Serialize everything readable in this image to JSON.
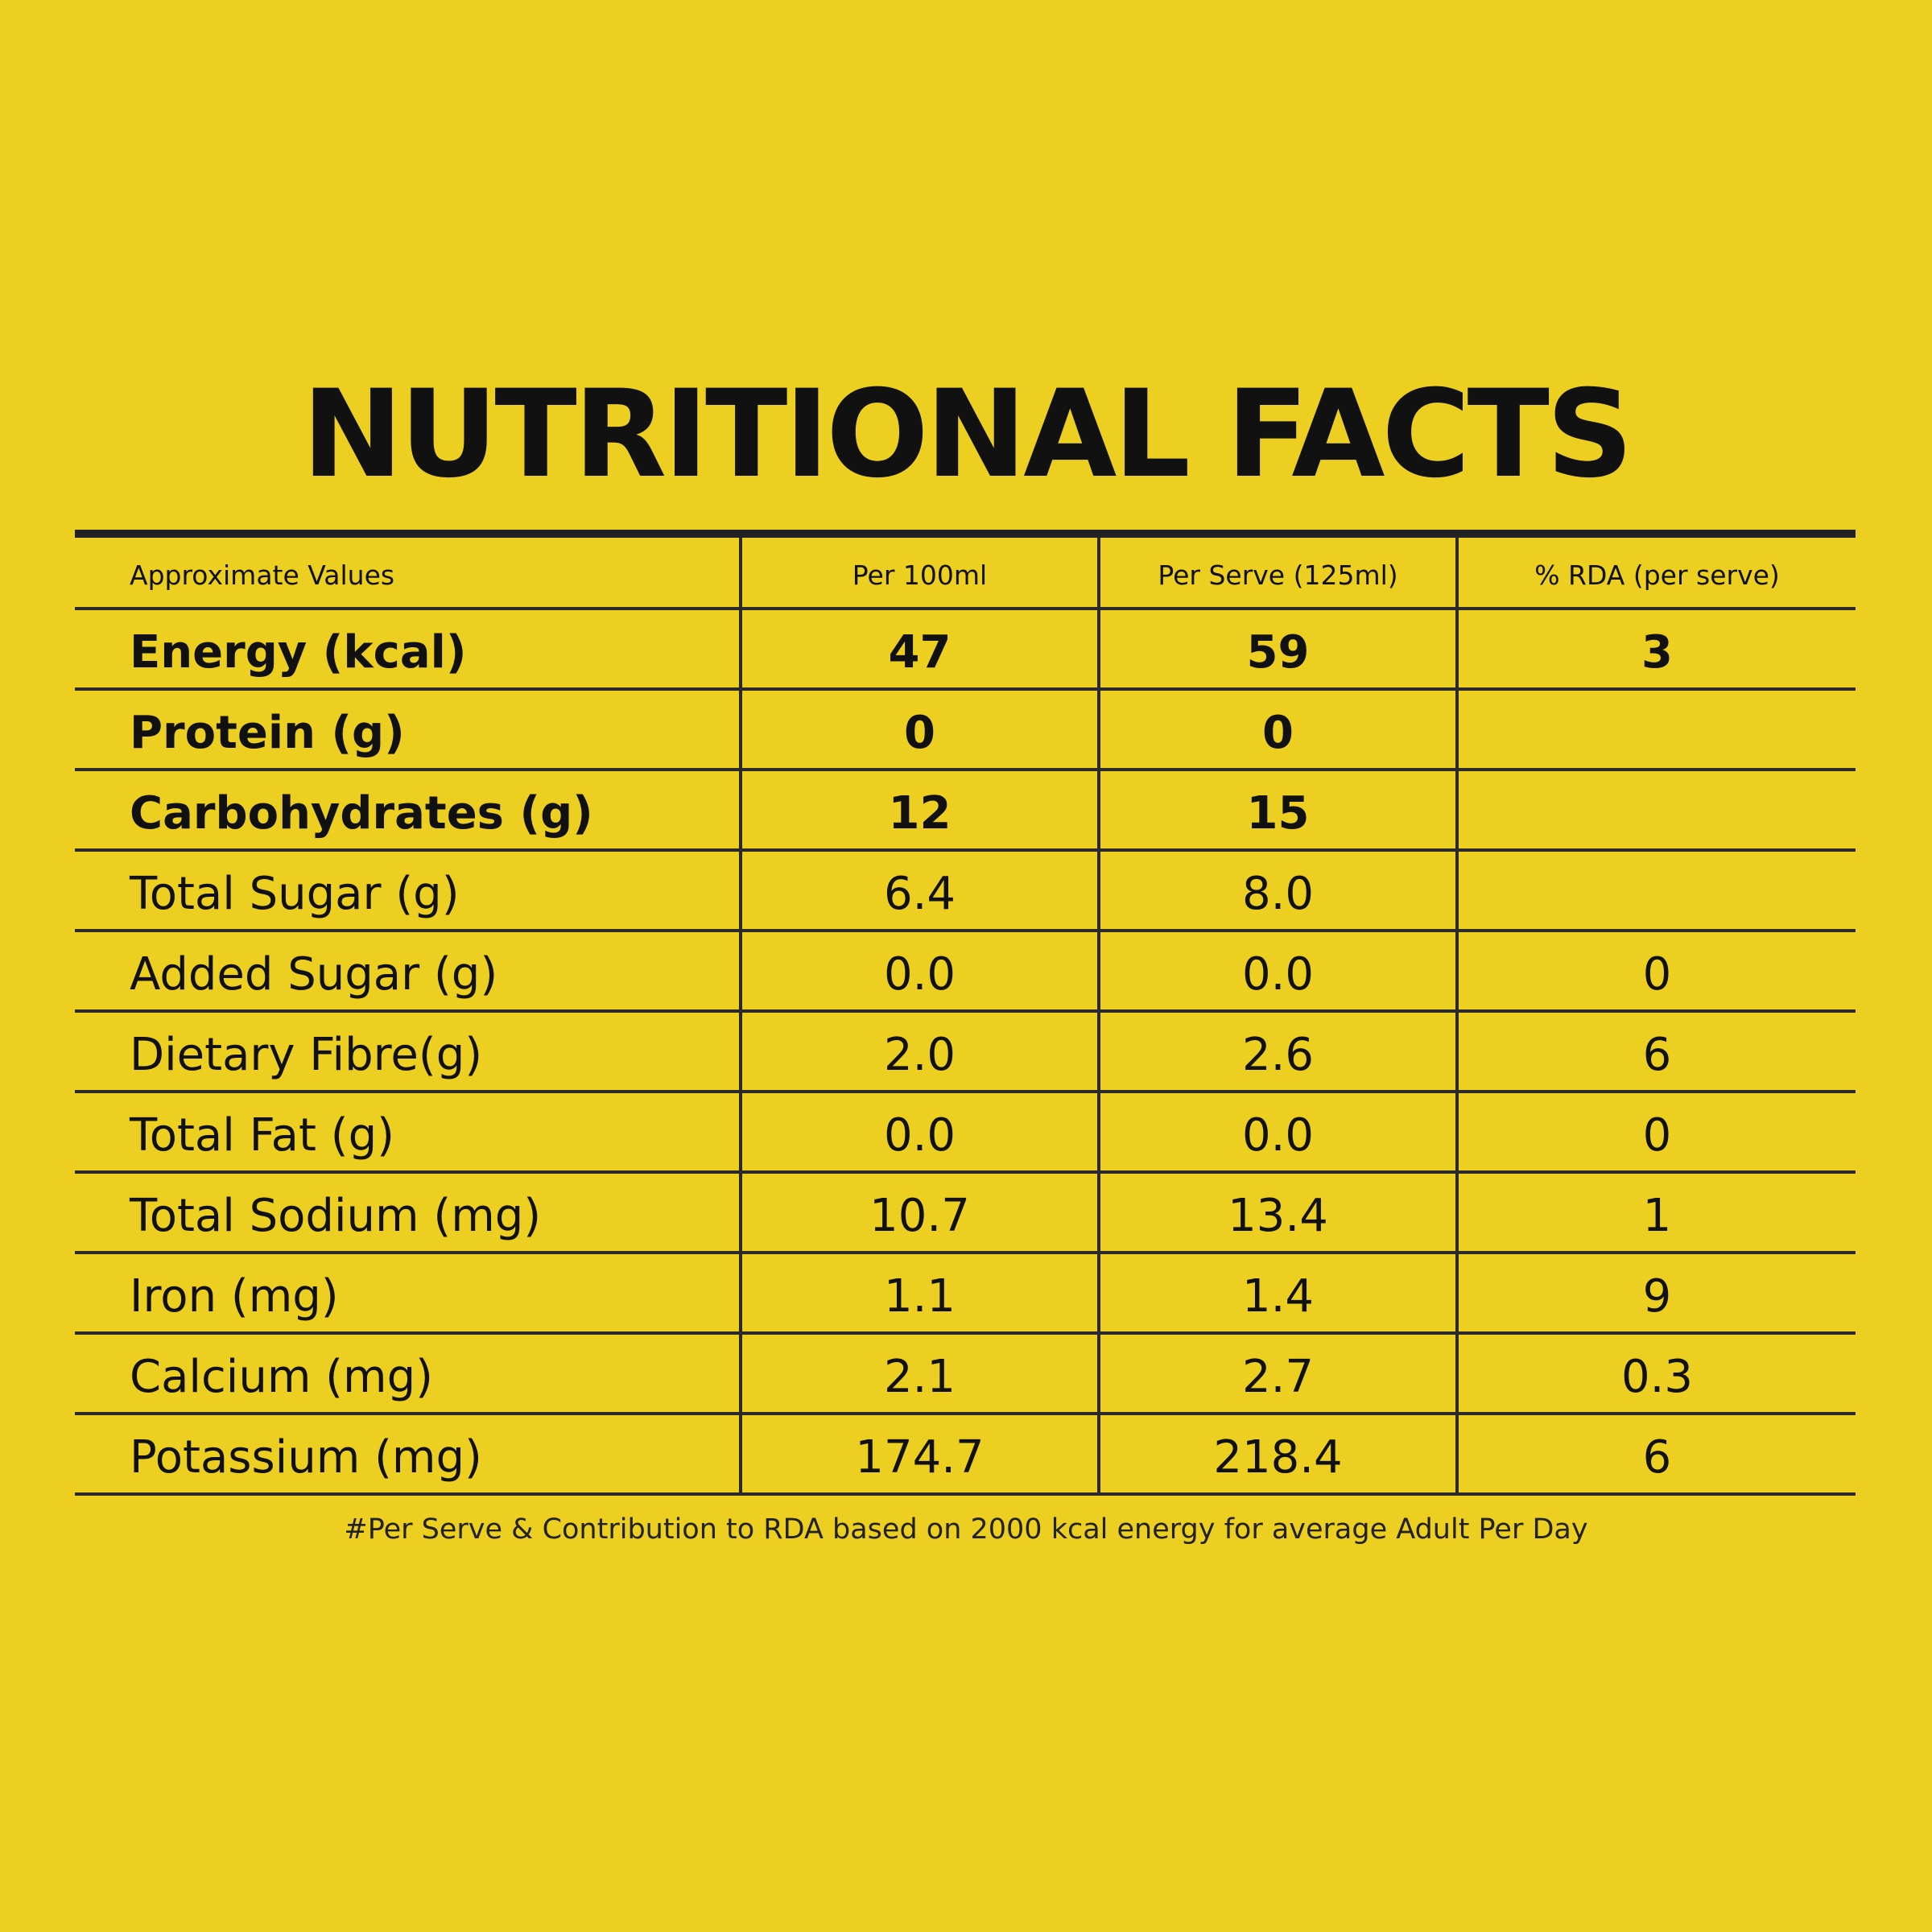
{
  "title": "NUTRITIONAL FACTS",
  "table": {
    "headers": [
      "Approximate Values",
      "Per 100ml",
      "Per Serve (125ml)",
      "% RDA (per serve)"
    ],
    "rows": [
      {
        "nutrient": "Energy (kcal)",
        "per100": "47",
        "perServe": "59",
        "rda": "3",
        "bold": true
      },
      {
        "nutrient": "Protein (g)",
        "per100": "0",
        "perServe": "0",
        "rda": "",
        "bold": true
      },
      {
        "nutrient": "Carbohydrates (g)",
        "per100": "12",
        "perServe": "15",
        "rda": "",
        "bold": true
      },
      {
        "nutrient": "Total Sugar (g)",
        "per100": "6.4",
        "perServe": "8.0",
        "rda": "",
        "bold": false
      },
      {
        "nutrient": "Added Sugar (g)",
        "per100": "0.0",
        "perServe": "0.0",
        "rda": "0",
        "bold": false
      },
      {
        "nutrient": "Dietary Fibre(g)",
        "per100": "2.0",
        "perServe": "2.6",
        "rda": "6",
        "bold": false
      },
      {
        "nutrient": "Total Fat (g)",
        "per100": "0.0",
        "perServe": "0.0",
        "rda": "0",
        "bold": false
      },
      {
        "nutrient": "Total Sodium (mg)",
        "per100": "10.7",
        "perServe": "13.4",
        "rda": "1",
        "bold": false
      },
      {
        "nutrient": "Iron (mg)",
        "per100": "1.1",
        "perServe": "1.4",
        "rda": "9",
        "bold": false
      },
      {
        "nutrient": "Calcium (mg)",
        "per100": "2.1",
        "perServe": "2.7",
        "rda": "0.3",
        "bold": false
      },
      {
        "nutrient": "Potassium (mg)",
        "per100": "174.7",
        "perServe": "218.4",
        "rda": "6",
        "bold": false
      }
    ]
  },
  "footnote": "#Per Serve & Contribution to RDA based on 2000 kcal energy for average Adult Per Day",
  "colors": {
    "background": "#EDCF22",
    "text": "#111111",
    "rule": "#222222"
  }
}
